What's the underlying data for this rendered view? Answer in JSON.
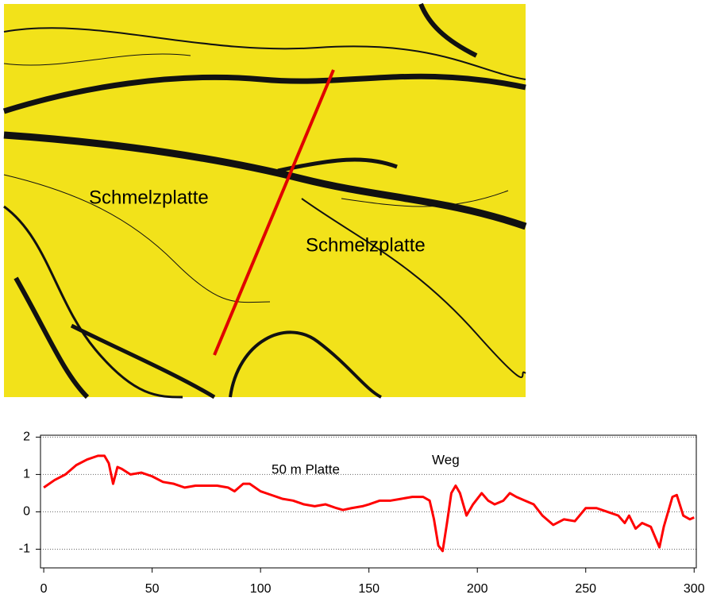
{
  "map": {
    "labels": [
      "Schmelzplatte",
      "Schmelzplatte"
    ]
  },
  "chart_data": {
    "type": "line",
    "annotations": [
      "50 m Platte",
      "Weg"
    ],
    "x": [
      0,
      5,
      10,
      15,
      20,
      25,
      28,
      30,
      32,
      34,
      36,
      40,
      45,
      50,
      55,
      60,
      65,
      70,
      75,
      80,
      85,
      88,
      92,
      95,
      100,
      105,
      110,
      115,
      120,
      125,
      130,
      135,
      138,
      142,
      147,
      150,
      155,
      160,
      165,
      170,
      175,
      178,
      180,
      182,
      184,
      186,
      188,
      190,
      192,
      195,
      198,
      202,
      205,
      208,
      212,
      215,
      218,
      222,
      226,
      230,
      235,
      240,
      245,
      250,
      255,
      260,
      265,
      268,
      270,
      273,
      276,
      280,
      284,
      286,
      290,
      292,
      295,
      298,
      300
    ],
    "series": [
      {
        "color": "#ff0000",
        "values": [
          0.65,
          0.85,
          1.0,
          1.25,
          1.4,
          1.5,
          1.5,
          1.3,
          0.75,
          1.2,
          1.15,
          1.0,
          1.05,
          0.95,
          0.8,
          0.75,
          0.65,
          0.7,
          0.7,
          0.7,
          0.65,
          0.55,
          0.75,
          0.75,
          0.55,
          0.45,
          0.35,
          0.3,
          0.2,
          0.15,
          0.2,
          0.1,
          0.05,
          0.1,
          0.15,
          0.2,
          0.3,
          0.3,
          0.35,
          0.4,
          0.4,
          0.3,
          -0.2,
          -0.9,
          -1.05,
          -0.3,
          0.5,
          0.7,
          0.5,
          -0.1,
          0.2,
          0.5,
          0.3,
          0.2,
          0.3,
          0.5,
          0.4,
          0.3,
          0.2,
          -0.1,
          -0.35,
          -0.2,
          -0.25,
          0.1,
          0.1,
          0.0,
          -0.1,
          -0.3,
          -0.1,
          -0.45,
          -0.3,
          -0.4,
          -0.95,
          -0.4,
          0.4,
          0.45,
          -0.1,
          -0.2,
          -0.15
        ]
      }
    ],
    "xlim": [
      -1.5,
      301
    ],
    "xticks": [
      0,
      50,
      100,
      150,
      200,
      250,
      300
    ],
    "ylim": [
      -1.5,
      2.05
    ],
    "yticks": [
      2,
      1,
      0,
      -1
    ],
    "grid": true
  }
}
